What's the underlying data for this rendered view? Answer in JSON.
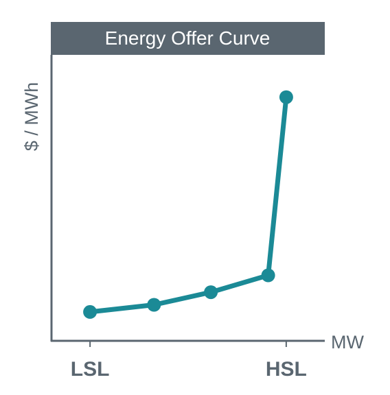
{
  "chart_data": {
    "type": "line",
    "title": "Energy Offer Curve",
    "ylabel": "$ / MWh",
    "xlabel": "MW",
    "x_tick_labels": [
      "LSL",
      "HSL"
    ],
    "x_ticks": [
      0,
      100
    ],
    "xlim": [
      -19.3,
      119.3
    ],
    "ylim": [
      0,
      100
    ],
    "grid": false,
    "legend": "none",
    "series": [
      {
        "x": [
          0,
          32.6,
          61.6,
          90.8,
          100
        ],
        "y": [
          10.1,
          12.6,
          17.0,
          22.9,
          85.2
        ]
      }
    ],
    "colors": {
      "line": "#1b8a96",
      "axis": "#5a6670",
      "title_bg": "#5a6670",
      "title_text": "#ffffff"
    }
  }
}
